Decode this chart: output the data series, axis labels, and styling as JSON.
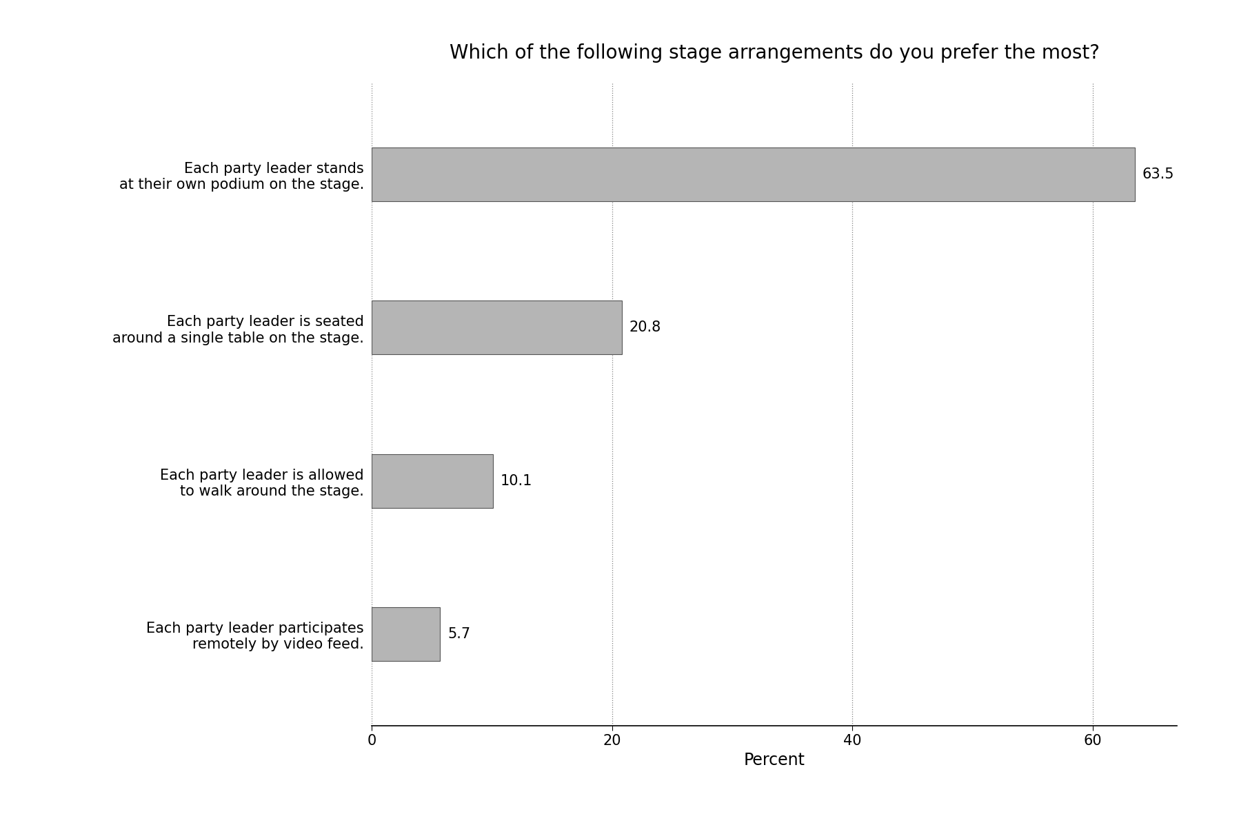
{
  "title": "Which of the following stage arrangements do you prefer the most?",
  "categories": [
    "Each party leader participates\nremotely by video feed.",
    "Each party leader is allowed\nto walk around the stage.",
    "Each party leader is seated\naround a single table on the stage.",
    "Each party leader stands\nat their own podium on the stage."
  ],
  "values": [
    5.7,
    10.1,
    20.8,
    63.5
  ],
  "bar_color": "#b5b5b5",
  "bar_edgecolor": "#555555",
  "xlabel": "Percent",
  "xlim": [
    0,
    67
  ],
  "xticks": [
    0,
    20,
    40,
    60
  ],
  "background_color": "#ffffff",
  "title_fontsize": 20,
  "label_fontsize": 15,
  "tick_fontsize": 15,
  "xlabel_fontsize": 17,
  "value_label_fontsize": 15,
  "bar_height": 0.35
}
